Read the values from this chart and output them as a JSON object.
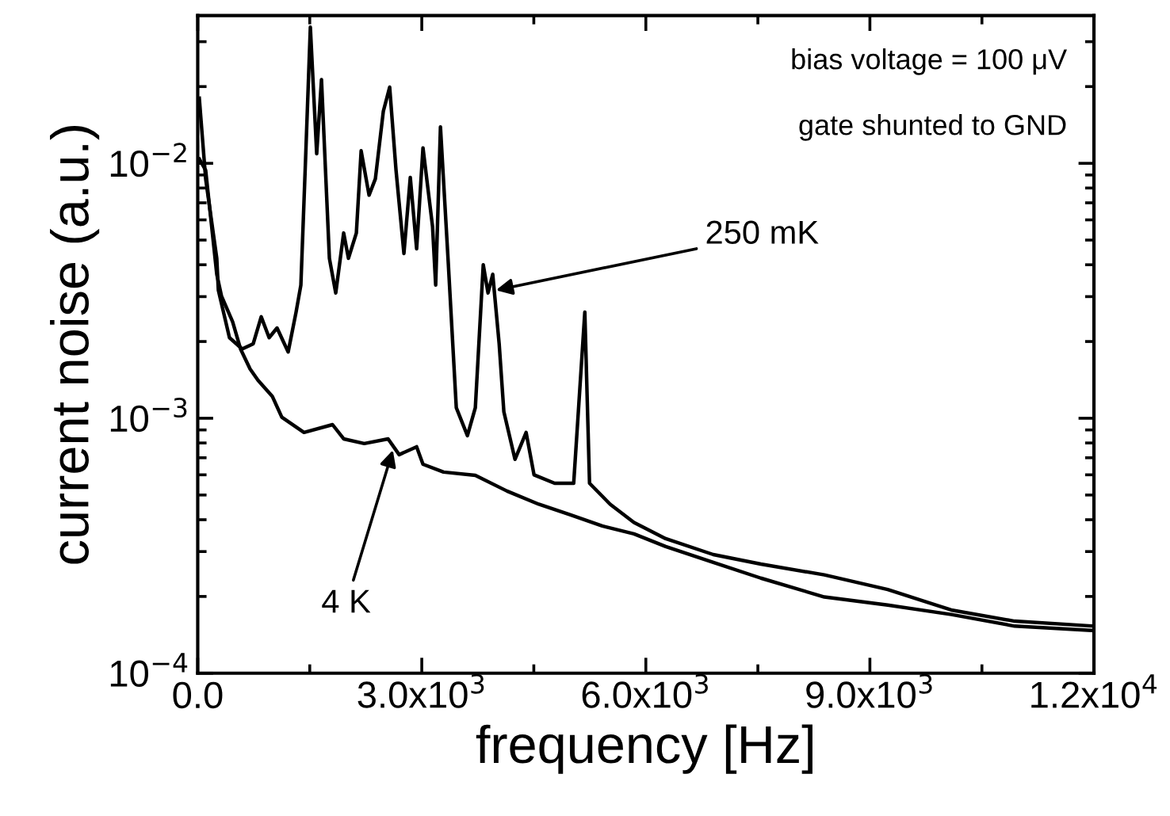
{
  "chart_data": {
    "type": "line",
    "xlabel": "frequency [Hz]",
    "ylabel": "current noise (a.u.)",
    "log": "y",
    "grid": false,
    "legend": false,
    "marker": "none",
    "line_style": "solid",
    "xlim": [
      0,
      12000
    ],
    "xticks": [
      {
        "value": 0,
        "label": "0.0"
      },
      {
        "value": 3000,
        "label": "3.0x10$^{3}$"
      },
      {
        "value": 6000,
        "label": "6.0x10$^{3}$"
      },
      {
        "value": 9000,
        "label": "9.0x10$^{3}$"
      },
      {
        "value": 12000,
        "label": "1.2x10$^{4}$"
      }
    ],
    "ylim": [
      0.0001,
      0.038
    ],
    "yticks": [
      {
        "value": 0.0001,
        "label": "10$^{−4}$"
      },
      {
        "value": 0.001,
        "label": "10$^{−3}$"
      },
      {
        "value": 0.01,
        "label": "10$^{−2}$"
      }
    ],
    "series": [
      {
        "color": "#000000",
        "x": [
          21,
          106,
          255,
          276,
          425,
          595,
          743,
          850,
          956,
          1062,
          1211,
          1317,
          1381,
          1444,
          1508,
          1593,
          1657,
          1763,
          1848,
          1954,
          2018,
          2124,
          2188,
          2294,
          2379,
          2485,
          2570,
          2655,
          2761,
          2846,
          2931,
          3016,
          3144,
          3186,
          3250,
          3356,
          3462,
          3611,
          3717,
          3823,
          3887,
          3950,
          4036,
          4099,
          4248,
          4397,
          4503,
          4779,
          5034,
          5183,
          5246,
          5522,
          5841,
          6266,
          6903,
          7540,
          8390,
          9239,
          10089,
          10939,
          12000
        ],
        "values": [
          0.018,
          0.0087,
          0.00424,
          0.00318,
          0.00207,
          0.00187,
          0.00196,
          0.0025,
          0.00207,
          0.00226,
          0.00182,
          0.00261,
          0.00333,
          0.0104,
          0.0342,
          0.0109,
          0.0213,
          0.00424,
          0.0031,
          0.00533,
          0.00424,
          0.00533,
          0.0112,
          0.0075,
          0.0087,
          0.016,
          0.0199,
          0.0094,
          0.00443,
          0.0088,
          0.00462,
          0.0115,
          0.00565,
          0.00333,
          0.0139,
          0.004,
          0.0011,
          0.000855,
          0.0011,
          0.004,
          0.0031,
          0.00367,
          0.00196,
          0.00106,
          0.00069,
          0.00088,
          0.0006,
          0.000556,
          0.000556,
          0.00261,
          0.000556,
          0.00046,
          0.00039,
          0.000337,
          0.000292,
          0.000268,
          0.000243,
          0.000213,
          0.000177,
          0.00016,
          0.000153
        ]
      },
      {
        "color": "#000000",
        "x": [
          21,
          106,
          255,
          319,
          467,
          573,
          701,
          807,
          998,
          1126,
          1423,
          1805,
          1954,
          2230,
          2549,
          2697,
          2931,
          3016,
          3292,
          3717,
          4142,
          4567,
          4991,
          5416,
          5841,
          6266,
          6903,
          7540,
          8390,
          9239,
          10089,
          10939,
          12000
        ],
        "values": [
          0.0104,
          0.0094,
          0.00367,
          0.00301,
          0.00239,
          0.00187,
          0.00156,
          0.00141,
          0.00122,
          0.00101,
          0.00088,
          0.000944,
          0.00083,
          0.000796,
          0.00083,
          0.00072,
          0.000773,
          0.00066,
          0.000615,
          0.000597,
          0.000518,
          0.00046,
          0.000418,
          0.000378,
          0.000352,
          0.000314,
          0.000272,
          0.000236,
          0.000199,
          0.000185,
          0.00017,
          0.000153,
          0.000147
        ]
      }
    ],
    "annotations": [
      "bias voltage = 100 μV",
      "gate shunted to GND",
      {
        "text": "250 mK",
        "x": 3993,
        "y": 0.00318
      },
      {
        "text": "4 K",
        "x": 2613,
        "y": 0.00075
      }
    ]
  }
}
